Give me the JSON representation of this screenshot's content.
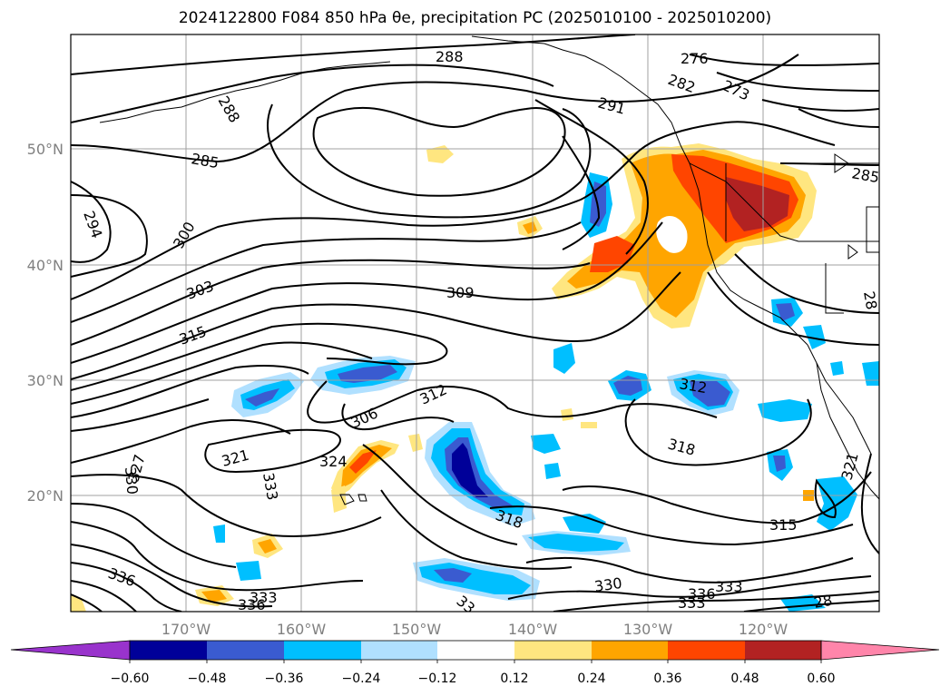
{
  "title": "2024122800 F084 850 hPa θe, precipitation PC (2025010100 - 2025010200)",
  "lon_ticks": [
    "170°W",
    "160°W",
    "150°W",
    "140°W",
    "130°W",
    "120°W"
  ],
  "lat_ticks": [
    "50°N",
    "40°N",
    "30°N",
    "20°N"
  ],
  "colorbar": {
    "labels": [
      "−0.60",
      "−0.48",
      "−0.36",
      "−0.24",
      "−0.12",
      "0.12",
      "0.24",
      "0.36",
      "0.48",
      "0.60"
    ],
    "colors": [
      "#9933cc",
      "#000099",
      "#3a5bd0",
      "#00bfff",
      "#b0e0ff",
      "#ffffff",
      "#ffe680",
      "#ffa500",
      "#ff4500",
      "#b22222",
      "#ff85aa"
    ]
  },
  "contour_labels": [
    "288",
    "276",
    "273",
    "282",
    "291",
    "285",
    "288",
    "294",
    "300",
    "303",
    "309",
    "315",
    "312",
    "306",
    "312",
    "318",
    "321",
    "324",
    "333",
    "330",
    "327",
    "318",
    "315",
    "321",
    "330",
    "333",
    "336",
    "333",
    "336",
    "33",
    "333",
    "336",
    "28"
  ],
  "colors": {
    "grid": "#a0a0a0",
    "contour": "#000000",
    "coast": "#000000"
  }
}
